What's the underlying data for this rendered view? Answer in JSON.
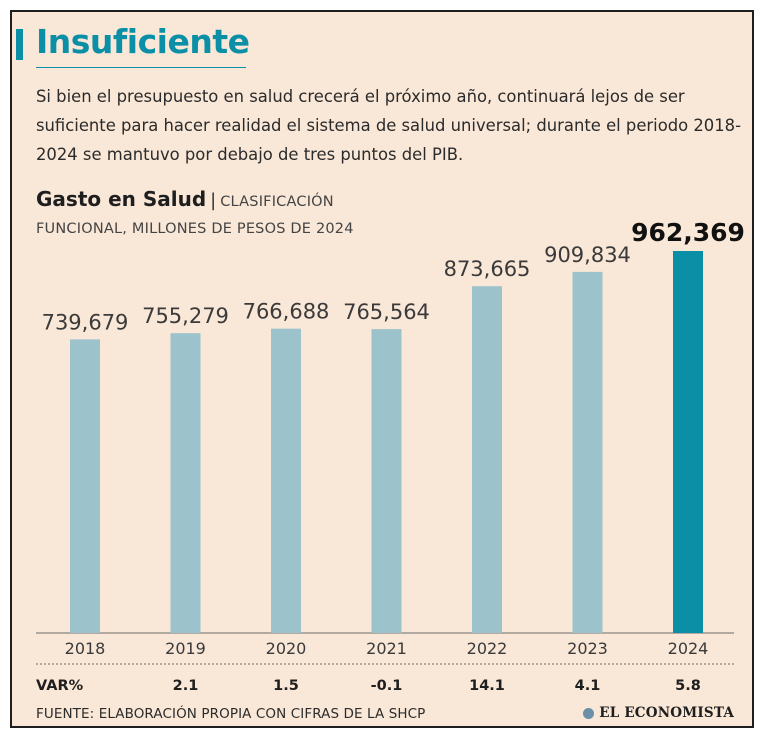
{
  "header": {
    "title": "Insuficiente",
    "intro": "Si bien el presupuesto en salud crecerá el próximo año, continuará lejos de ser suficiente para hacer realidad el sistema de salud universal; durante el periodo 2018-2024 se mantuvo por debajo de tres puntos del PIB."
  },
  "chart_data": {
    "type": "bar",
    "title": "Gasto en Salud",
    "subtitle_part1": "CLASIFICACIÓN",
    "subtitle_part2": "FUNCIONAL, MILLONES DE PESOS DE 2024",
    "categories": [
      "2018",
      "2019",
      "2020",
      "2021",
      "2022",
      "2023",
      "2024"
    ],
    "values": [
      739679,
      755279,
      766688,
      765564,
      873665,
      909834,
      962369
    ],
    "value_labels": [
      "739,679",
      "755,279",
      "766,688",
      "765,564",
      "873,665",
      "909,834",
      "962,369"
    ],
    "highlight_index": 6,
    "var_label": "VAR%",
    "var_values": [
      "",
      "2.1",
      "1.5",
      "-0.1",
      "14.1",
      "4.1",
      "5.8"
    ],
    "ylim": [
      0,
      962369
    ],
    "colors": {
      "bar": "#9cc2cc",
      "highlight": "#0a8fa6"
    }
  },
  "footer": {
    "source": "FUENTE: ELABORACIÓN PROPIA CON CIFRAS DE LA SHCP",
    "brand": "EL ECONOMISTA"
  }
}
